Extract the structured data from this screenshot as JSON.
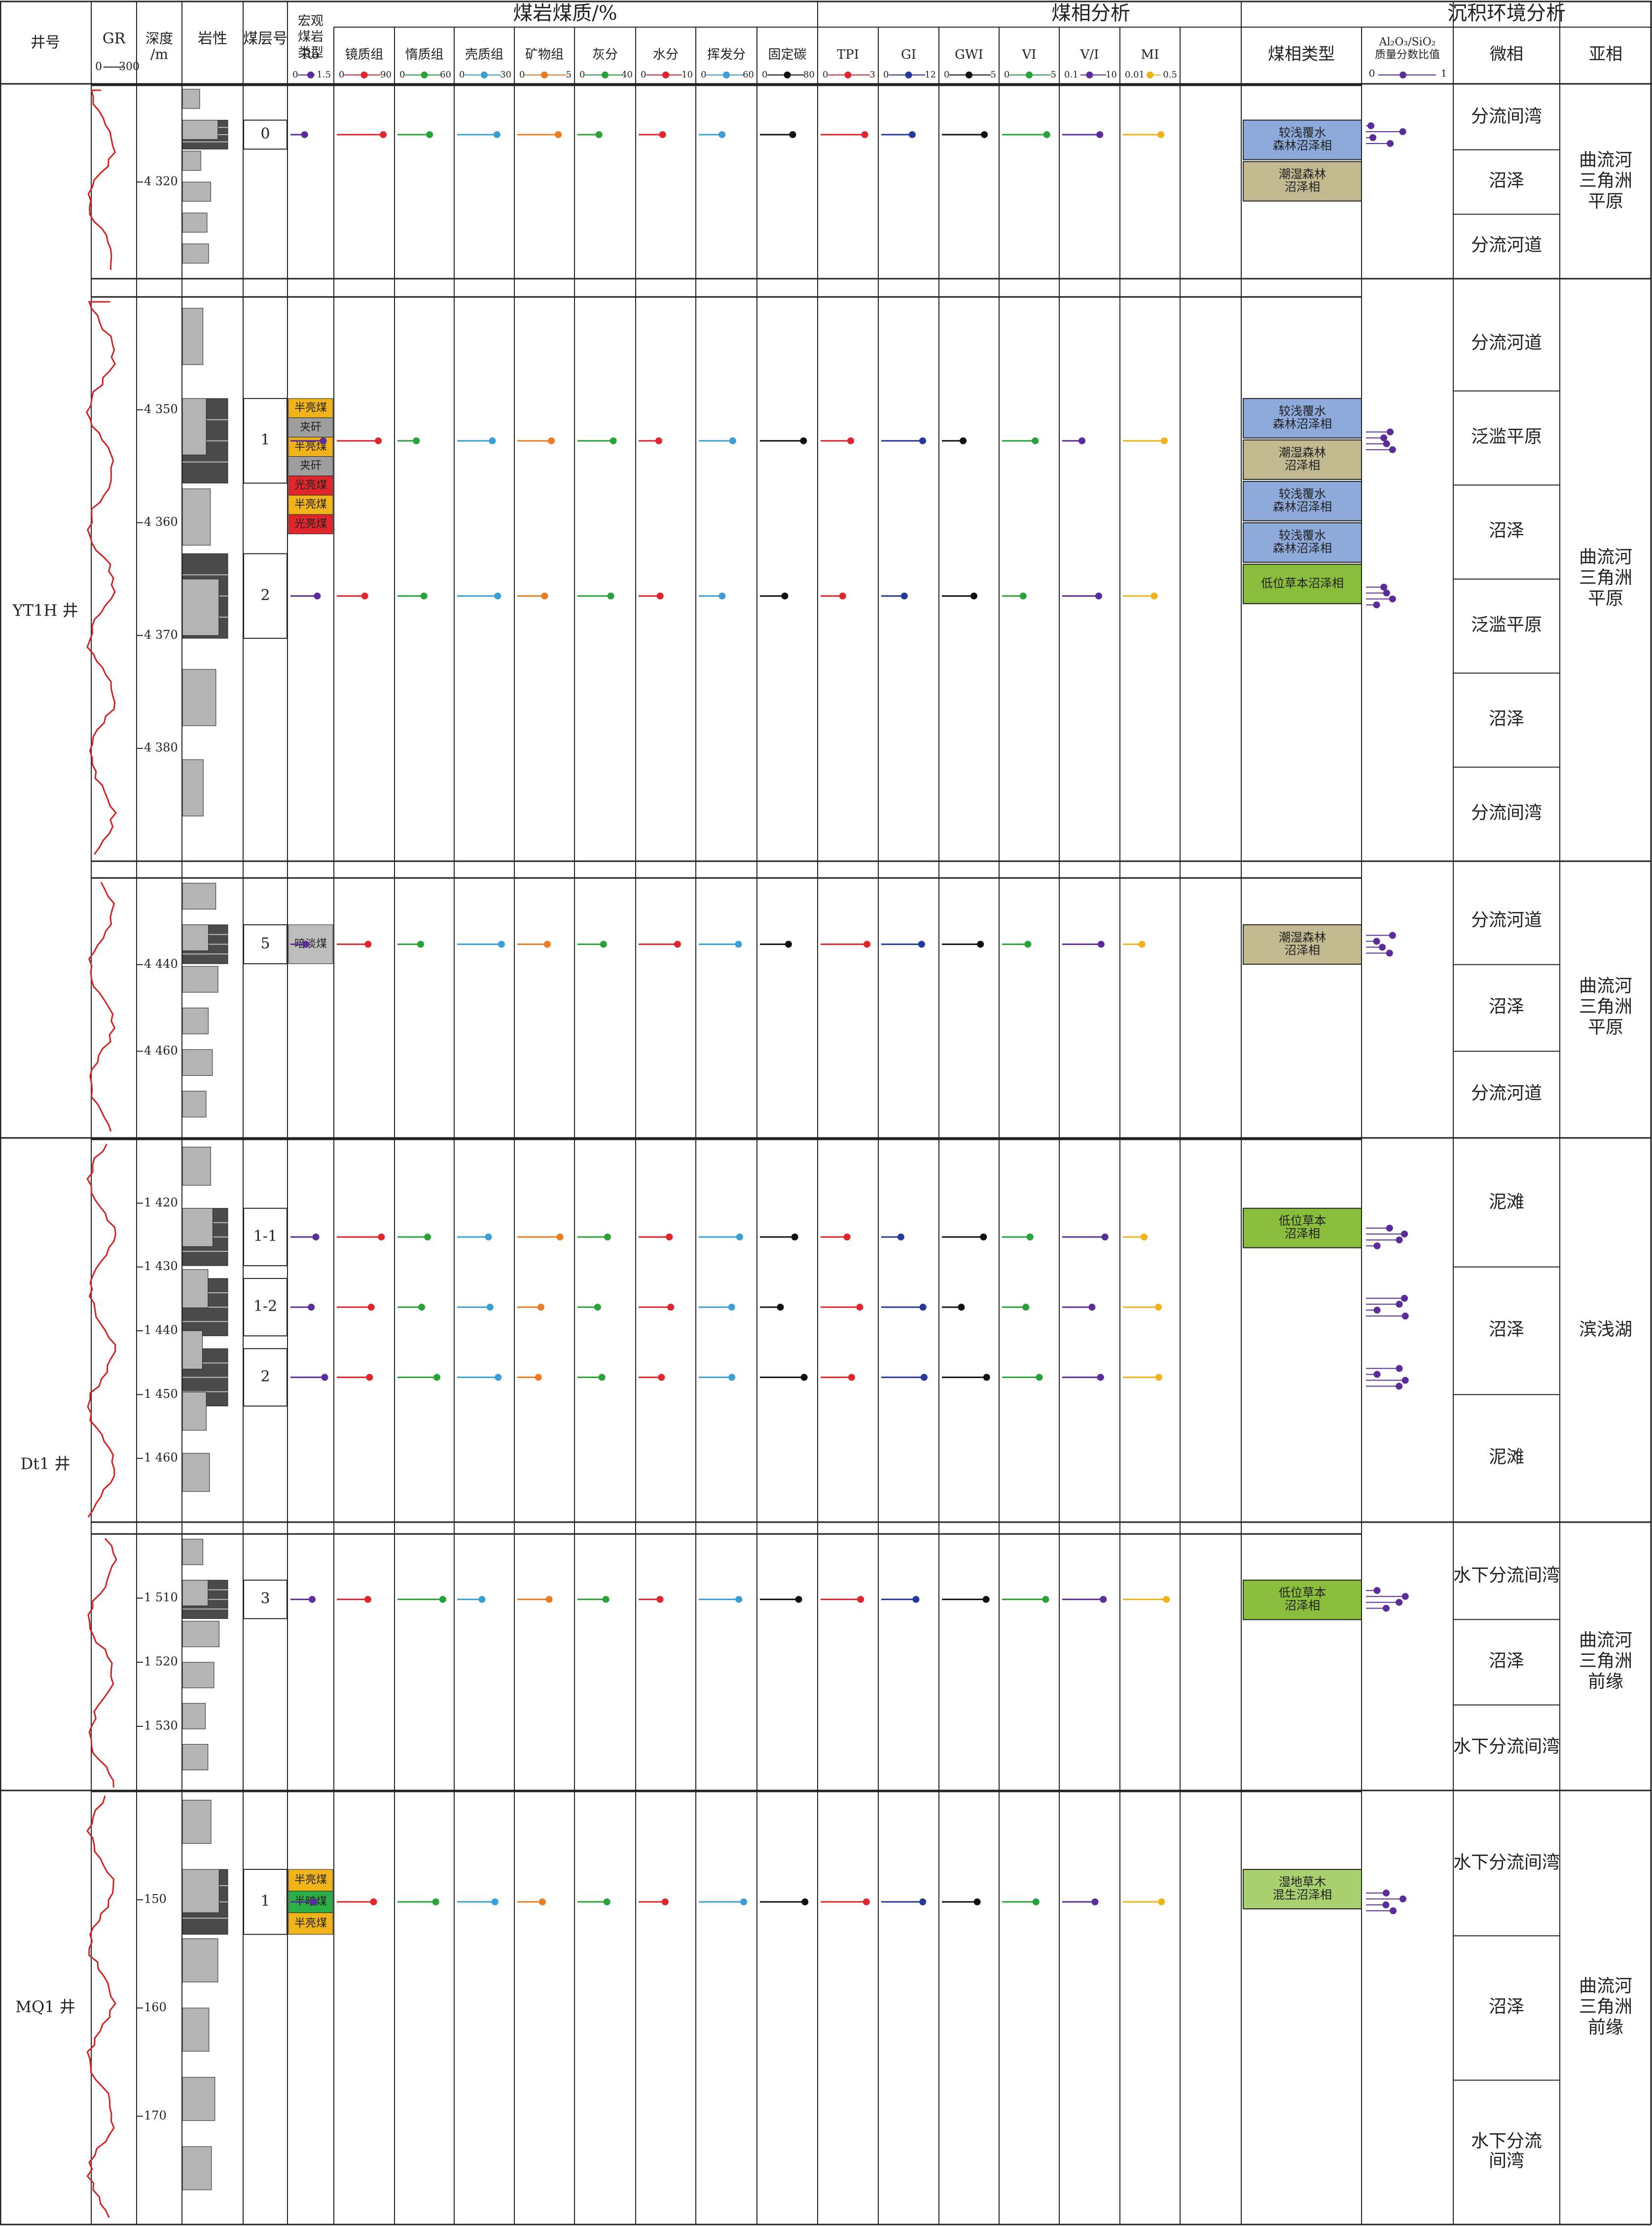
{
  "headers": {
    "well": "井号",
    "gr": "GR",
    "gr_range": [
      "0",
      "300"
    ],
    "depth": [
      "深度",
      "/m"
    ],
    "lith": "岩性",
    "seam": "煤层号",
    "macro": [
      "宏观",
      "煤岩",
      "类型"
    ],
    "group_quality": "煤岩煤质/%",
    "group_facies": "煤相分析",
    "group_env": "沉积环境分析",
    "facies_type": "煤相类型",
    "ratio_title": [
      "Al₂O₃/SiO₂",
      "质量分数比值"
    ],
    "ratio_range": [
      "0",
      "1"
    ],
    "micro": "微相",
    "sub": "亚相"
  },
  "params": [
    {
      "name": "Ro",
      "min": "0",
      "max": "1.5",
      "color": "#5b2d9a"
    },
    {
      "name": "镜质组",
      "min": "0",
      "max": "90",
      "color": "#e0262b"
    },
    {
      "name": "惰质组",
      "min": "0",
      "max": "60",
      "color": "#29a23a"
    },
    {
      "name": "壳质组",
      "min": "0",
      "max": "30",
      "color": "#3b9fd6"
    },
    {
      "name": "矿物组",
      "min": "0",
      "max": "5",
      "color": "#ea7d23"
    },
    {
      "name": "灰分",
      "min": "0",
      "max": "40",
      "color": "#29a23a"
    },
    {
      "name": "水分",
      "min": "0",
      "max": "10",
      "color": "#e0262b"
    },
    {
      "name": "挥发分",
      "min": "0",
      "max": "60",
      "color": "#3b9fd6"
    },
    {
      "name": "固定碳",
      "min": "0",
      "max": "80",
      "color": "#111111"
    },
    {
      "name": "TPI",
      "min": "0",
      "max": "3",
      "color": "#e0262b"
    },
    {
      "name": "GI",
      "min": "0",
      "max": "12",
      "color": "#24399a"
    },
    {
      "name": "GWI",
      "min": "0",
      "max": "5",
      "color": "#111111"
    },
    {
      "name": "VI",
      "min": "0",
      "max": "5",
      "color": "#29a23a"
    },
    {
      "name": "V/I",
      "min": "0.1",
      "max": "10",
      "color": "#5b2d9a"
    },
    {
      "name": "MI",
      "min": "0.01",
      "max": "0.5",
      "color": "#f0b319"
    }
  ],
  "wells": [
    {
      "label": "YT1H 井"
    },
    {
      "label": "Dt1 井"
    },
    {
      "label": "MQ1 井"
    }
  ],
  "panels": [
    {
      "depth_ticks": [
        "4 320"
      ],
      "seams": [
        {
          "label": "0"
        }
      ],
      "macro": [],
      "facies": [
        {
          "text": [
            "较浅覆水",
            "森林沼泽相"
          ],
          "color": "#8eaadb"
        },
        {
          "text": [
            "潮湿森林",
            "沼泽相"
          ],
          "color": "#c2b990"
        }
      ],
      "micro": [
        "分流间湾",
        "沼泽",
        "分流河道"
      ],
      "sub": [
        "曲流河",
        "三角洲",
        "平原"
      ]
    },
    {
      "depth_ticks": [
        "4 350",
        "4 360",
        "4 370",
        "4 380"
      ],
      "seams": [
        {
          "label": "1"
        },
        {
          "label": "2"
        }
      ],
      "macro": [
        {
          "text": "半亮煤",
          "color": "#f0b319"
        },
        {
          "text": "夹矸",
          "color": "#9e9e9e"
        },
        {
          "text": "半亮煤",
          "color": "#f0b319"
        },
        {
          "text": "夹矸",
          "color": "#9e9e9e"
        },
        {
          "text": "光亮煤",
          "color": "#e0262b"
        },
        {
          "text": "半亮煤",
          "color": "#f0b319"
        },
        {
          "text": "光亮煤",
          "color": "#e0262b"
        }
      ],
      "facies": [
        {
          "text": [
            "较浅覆水",
            "森林沼泽相"
          ],
          "color": "#8eaadb"
        },
        {
          "text": [
            "潮湿森林",
            "沼泽相"
          ],
          "color": "#c2b990"
        },
        {
          "text": [
            "较浅覆水",
            "森林沼泽相"
          ],
          "color": "#8eaadb"
        },
        {
          "text": [
            "较浅覆水",
            "森林沼泽相"
          ],
          "color": "#8eaadb"
        },
        {
          "text": [
            "低位草本沼泽相"
          ],
          "color": "#8bbd3c"
        }
      ],
      "micro": [
        "分流河道",
        "泛滥平原",
        "沼泽",
        "泛滥平原",
        "沼泽",
        "分流间湾"
      ],
      "sub": [
        "曲流河",
        "三角洲",
        "平原"
      ]
    },
    {
      "depth_ticks": [
        "4 440",
        "4 460"
      ],
      "seams": [
        {
          "label": "5"
        }
      ],
      "macro": [
        {
          "text": "暗淡煤",
          "color": "#bdbdbd"
        }
      ],
      "facies": [
        {
          "text": [
            "潮湿森林",
            "沼泽相"
          ],
          "color": "#c2b990"
        }
      ],
      "micro": [
        "分流河道",
        "沼泽",
        "分流河道"
      ],
      "sub": [
        "曲流河",
        "三角洲",
        "平原"
      ]
    },
    {
      "depth_ticks": [
        "1 420",
        "1 430",
        "1 440",
        "1 450",
        "1 460"
      ],
      "seams": [
        {
          "label": "1-1"
        },
        {
          "label": "1-2"
        },
        {
          "label": "2"
        }
      ],
      "macro": [],
      "facies": [
        {
          "text": [
            "低位草本",
            "沼泽相"
          ],
          "color": "#8bbd3c"
        }
      ],
      "micro": [
        "泥滩",
        "沼泽",
        "泥滩"
      ],
      "sub": [
        "滨浅湖"
      ]
    },
    {
      "depth_ticks": [
        "1 510",
        "1 520",
        "1 530"
      ],
      "seams": [
        {
          "label": "3"
        }
      ],
      "macro": [],
      "facies": [
        {
          "text": [
            "低位草本",
            "沼泽相"
          ],
          "color": "#8bbd3c"
        }
      ],
      "micro": [
        "水下分流间湾",
        "沼泽",
        "水下分流间湾"
      ],
      "sub": [
        "曲流河",
        "三角洲",
        "前缘"
      ]
    },
    {
      "depth_ticks": [
        "150",
        "160",
        "170"
      ],
      "seams": [
        {
          "label": "1"
        }
      ],
      "macro": [
        {
          "text": "半亮煤",
          "color": "#f0b319"
        },
        {
          "text": "半暗煤",
          "color": "#2daf47"
        },
        {
          "text": "半亮煤",
          "color": "#f0b319"
        }
      ],
      "facies": [
        {
          "text": [
            "湿地草木",
            "混生沼泽相"
          ],
          "color": "#a9d06f"
        }
      ],
      "micro": [
        "水下分流间湾",
        "沼泽",
        [
          "水下分流",
          "间湾"
        ]
      ],
      "sub": [
        "曲流河",
        "三角洲",
        "前缘"
      ]
    }
  ]
}
